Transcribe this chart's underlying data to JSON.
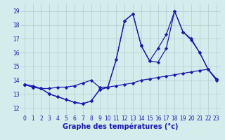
{
  "x": [
    0,
    1,
    2,
    3,
    4,
    5,
    6,
    7,
    8,
    9,
    10,
    11,
    12,
    13,
    14,
    15,
    16,
    17,
    18,
    19,
    20,
    21,
    22,
    23
  ],
  "line1": [
    13.7,
    13.6,
    13.4,
    13.4,
    13.5,
    13.5,
    13.6,
    13.8,
    14.0,
    13.5,
    13.5,
    13.6,
    13.7,
    13.8,
    14.0,
    14.1,
    14.2,
    14.3,
    14.4,
    14.5,
    14.6,
    14.7,
    14.8,
    14.0
  ],
  "line2": [
    13.7,
    13.5,
    13.4,
    13.0,
    12.8,
    12.6,
    12.4,
    12.3,
    12.5,
    13.3,
    13.5,
    15.5,
    18.3,
    18.8,
    16.5,
    15.4,
    15.3,
    16.3,
    19.0,
    17.5,
    16.9,
    16.0,
    14.8,
    14.1
  ],
  "line3": [
    13.7,
    13.5,
    13.4,
    13.0,
    12.8,
    12.6,
    12.4,
    12.3,
    12.5,
    13.3,
    13.5,
    15.5,
    18.3,
    18.8,
    16.5,
    null,
    null,
    null,
    null,
    null,
    null,
    null,
    null,
    null
  ],
  "line4": [
    13.7,
    null,
    null,
    null,
    null,
    null,
    null,
    null,
    null,
    null,
    null,
    null,
    null,
    null,
    16.5,
    15.4,
    16.3,
    17.3,
    19.0,
    17.5,
    17.0,
    16.0,
    14.8,
    14.1
  ],
  "background_color": "#d5ecec",
  "grid_color": "#b0ccd0",
  "line_color": "#1a1ab4",
  "marker": "D",
  "markersize": 2.2,
  "linewidth": 0.9,
  "xlabel": "Graphe des températures (°c)",
  "xlim": [
    -0.5,
    23.5
  ],
  "ylim": [
    11.5,
    19.5
  ],
  "yticks": [
    12,
    13,
    14,
    15,
    16,
    17,
    18,
    19
  ],
  "xticks": [
    0,
    1,
    2,
    3,
    4,
    5,
    6,
    7,
    8,
    9,
    10,
    11,
    12,
    13,
    14,
    15,
    16,
    17,
    18,
    19,
    20,
    21,
    22,
    23
  ],
  "tick_fontsize": 5.5,
  "xlabel_fontsize": 7.0
}
